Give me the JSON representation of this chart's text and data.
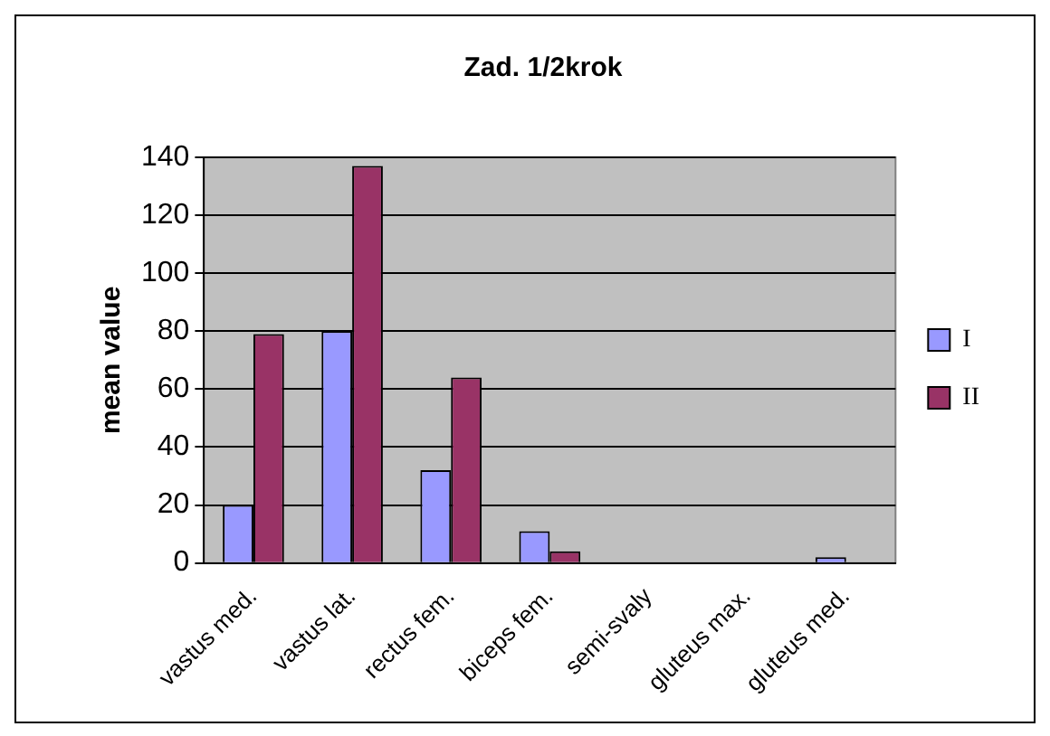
{
  "chart_data": {
    "type": "bar",
    "title": "Zad. 1/2krok",
    "ylabel": "mean value",
    "categories": [
      "vastus med.",
      "vastus lat.",
      "rectus fem.",
      "biceps fem.",
      "semi-svaly",
      "gluteus max.",
      "gluteus med."
    ],
    "series": [
      {
        "name": "I",
        "color": "#9999ff",
        "values": [
          20,
          80,
          32,
          11,
          0,
          0,
          2
        ]
      },
      {
        "name": "II",
        "color": "#993366",
        "values": [
          79,
          137,
          64,
          4,
          0,
          0,
          0
        ]
      }
    ],
    "ylim": [
      0,
      140
    ],
    "yticks": [
      0,
      20,
      40,
      60,
      80,
      100,
      120,
      140
    ],
    "grid": "y",
    "legend": "right"
  }
}
